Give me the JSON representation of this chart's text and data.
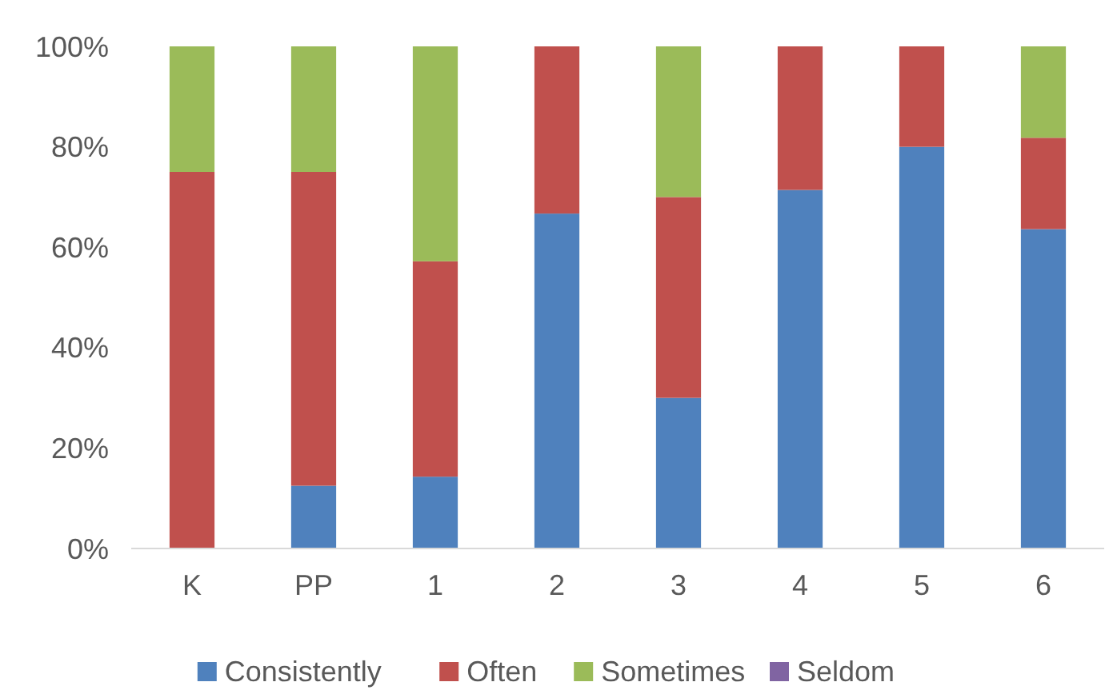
{
  "chart_data": {
    "type": "bar",
    "stacked": true,
    "categories": [
      "K",
      "PP",
      "1",
      "2",
      "3",
      "4",
      "5",
      "6"
    ],
    "series": [
      {
        "name": "Consistently",
        "color": "#4f81bd",
        "values": [
          0,
          12.5,
          14.3,
          66.7,
          30,
          71.4,
          80,
          63.6
        ]
      },
      {
        "name": "Often",
        "color": "#c0504d",
        "values": [
          75,
          62.5,
          42.9,
          33.3,
          40,
          28.6,
          20,
          18.2
        ]
      },
      {
        "name": "Sometimes",
        "color": "#9bbb59",
        "values": [
          25,
          25,
          42.8,
          0,
          30,
          0,
          0,
          18.2
        ]
      },
      {
        "name": "Seldom",
        "color": "#8064a2",
        "values": [
          0,
          0,
          0,
          0,
          0,
          0,
          0,
          0
        ]
      }
    ],
    "ylim": [
      0,
      100
    ],
    "yticks": [
      {
        "value": 0,
        "label": "0%"
      },
      {
        "value": 20,
        "label": "20%"
      },
      {
        "value": 40,
        "label": "40%"
      },
      {
        "value": 60,
        "label": "60%"
      },
      {
        "value": 80,
        "label": "80%"
      },
      {
        "value": 100,
        "label": "100%"
      }
    ],
    "grid": false,
    "legend": "bottom"
  }
}
